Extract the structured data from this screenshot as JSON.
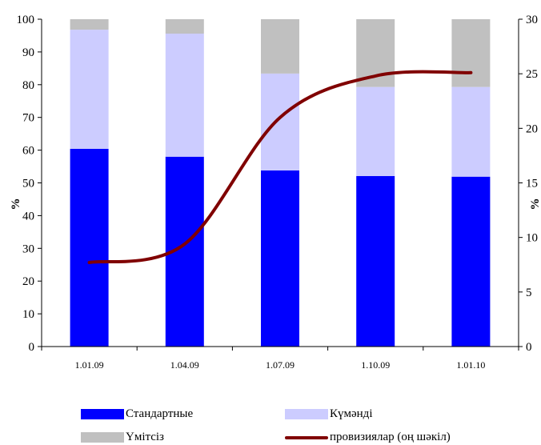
{
  "chart_data": {
    "type": "bar",
    "stacked": true,
    "categories": [
      "1.01.09",
      "1.04.09",
      "1.07.09",
      "1.10.09",
      "1.01.10"
    ],
    "series": [
      {
        "name": "Стандартные",
        "color": "#0000ff",
        "values": [
          60.4,
          58.0,
          53.8,
          52.1,
          51.9
        ]
      },
      {
        "name": "Күмәнді",
        "color": "#ccccff",
        "values": [
          36.4,
          37.6,
          29.6,
          27.2,
          27.4
        ]
      },
      {
        "name": "Үмітсіз",
        "color": "#c0c0c0",
        "values": [
          3.2,
          4.4,
          16.6,
          20.7,
          20.7
        ]
      }
    ],
    "line_series": {
      "name": "провизиялар (оң шәкіл)",
      "color": "#800000",
      "axis": "right",
      "values": [
        7.7,
        9.4,
        21.0,
        24.8,
        25.1
      ]
    },
    "ylabel": "%",
    "ylabel_right": "%",
    "ylim": [
      0,
      100
    ],
    "yticks": [
      "0",
      "10",
      "20",
      "30",
      "40",
      "50",
      "60",
      "70",
      "80",
      "90",
      "100"
    ],
    "ylim_right": [
      0,
      30
    ],
    "yticks_right": [
      "0",
      "5",
      "10",
      "15",
      "20",
      "25",
      "30"
    ],
    "legend_position": "bottom",
    "grid": false
  }
}
